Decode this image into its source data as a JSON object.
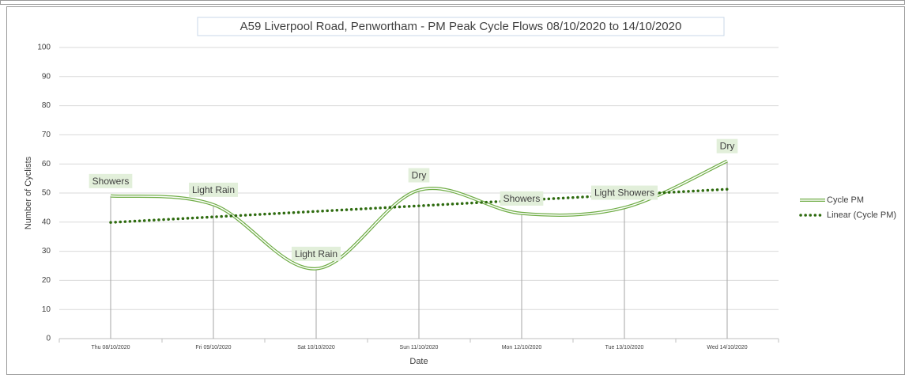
{
  "chart_data": {
    "type": "line",
    "title": "A59 Liverpool Road, Penwortham - PM Peak Cycle Flows 08/10/2020 to 14/10/2020",
    "xlabel": "Date",
    "ylabel": "Number of Cyclists",
    "categories": [
      "Thu 08/10/2020",
      "Fri 09/10/2020",
      "Sat 10/10/2020",
      "Sun 11/10/2020",
      "Mon 12/10/2020",
      "Tue 13/10/2020",
      "Wed 14/10/2020"
    ],
    "series": [
      {
        "name": "Cycle PM",
        "color": "#70ad47",
        "values": [
          49,
          46,
          24,
          51,
          43,
          45,
          61
        ],
        "labels": [
          "Showers",
          "Light Rain",
          "Light Rain",
          "Dry",
          "Showers",
          "Light Showers",
          "Dry"
        ]
      },
      {
        "name": "Linear (Cycle PM)",
        "color": "#2e6b0f",
        "values": [
          39.9,
          41.8,
          43.7,
          45.6,
          47.5,
          49.4,
          51.3
        ]
      }
    ],
    "ylim": [
      0,
      100
    ],
    "yticks": [
      0,
      10,
      20,
      30,
      40,
      50,
      60,
      70,
      80,
      90,
      100
    ],
    "grid": true
  }
}
